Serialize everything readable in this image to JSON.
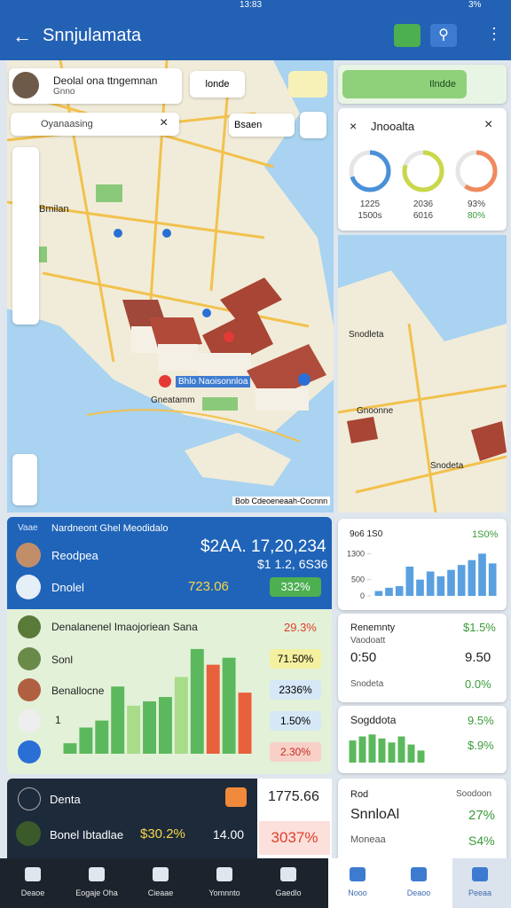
{
  "status_bar": {
    "time": "13:83",
    "battery": "3%"
  },
  "app_bar": {
    "title": "Snnjulamata"
  },
  "map": {
    "place_card": {
      "title": "Deolal ona ttngemnan",
      "subtitle": "Gnno",
      "chip": "londe"
    },
    "search": {
      "placeholder": "Oyanaasing"
    },
    "pin_chip": "Bsaen",
    "labels": [
      "Bmilan",
      "Bhlo Naoisonnloa",
      "Gneatamm"
    ],
    "attribution": "Bob Cdeoeneaah-Cocnnn"
  },
  "side_panel": {
    "search_value": "Ilndde",
    "title": "Jnooalta",
    "gauges": [
      {
        "value": 70,
        "color": "#4a90d9",
        "label": "1225",
        "sublabel": "1500s"
      },
      {
        "value": 80,
        "color": "#c8d84a",
        "label": "2036",
        "sublabel": "6016"
      },
      {
        "value": 60,
        "color": "#f08a5d",
        "label": "93%",
        "sublabel": "80%"
      }
    ]
  },
  "side_map": {
    "labels": [
      "Snodleta",
      "Gnoonne",
      "Snodeta"
    ]
  },
  "summary_card": {
    "label": "Vaae",
    "title": "Nardneont Ghel Meodidalo",
    "amount": "$2AA. 17,20,234",
    "sub_amount": "$1 1.2, 6S36",
    "rows": [
      {
        "name": "Reodpea"
      },
      {
        "name": "Dnolel",
        "value": "723.06",
        "badge": "332%"
      }
    ]
  },
  "growth_card": {
    "title": "Denalanenel Imaojoriean Sana",
    "change": "29.3%",
    "rows": [
      "Sonl",
      "Benallocne",
      "1"
    ],
    "badges": [
      "71.50%",
      "2336%",
      "1.50%",
      "2.30%"
    ],
    "chart": {
      "type": "bar",
      "values": [
        12,
        30,
        38,
        77,
        55,
        60,
        65,
        88,
        120,
        102,
        110,
        70
      ],
      "colors": [
        "#5cb85c",
        "#5cb85c",
        "#5cb85c",
        "#5cb85c",
        "#a8dc8a",
        "#5cb85c",
        "#5cb85c",
        "#a8dc8a",
        "#5cb85c",
        "#e8603c",
        "#5cb85c",
        "#e8603c"
      ],
      "ylim": [
        0,
        125
      ]
    }
  },
  "trend_card": {
    "title": "9o6 1S0",
    "change": "1S0%",
    "chart": {
      "type": "bar",
      "ylim": [
        0,
        1500
      ],
      "yticks": [
        1300,
        500,
        0
      ],
      "values": [
        150,
        250,
        300,
        900,
        500,
        750,
        600,
        800,
        950,
        1100,
        1300,
        1000
      ],
      "color": "#5aa0e0"
    }
  },
  "stats_card": {
    "rows": [
      {
        "name": "Renemnty",
        "value": "$1.5%"
      },
      {
        "name": "Vaodoatt",
        "value": ""
      },
      {
        "name": "0:50",
        "value": "9.50"
      },
      {
        "name": "Snodeta",
        "value": "0.0%"
      }
    ]
  },
  "mini_card": {
    "title": "Sogddota",
    "values_text": [
      "9.5%",
      "$.9%"
    ],
    "chart": {
      "type": "bar",
      "ylim": [
        0,
        30
      ],
      "values": [
        22,
        26,
        28,
        24,
        20,
        26,
        18,
        12
      ],
      "color": "#5cb85c"
    }
  },
  "dark_card": {
    "title": "Denta",
    "row": "Bonel Ibtadlae",
    "change": "$30.2%",
    "value": "14.00",
    "total": "1775.66",
    "total_change": "3037%"
  },
  "info_card": {
    "title": "Rod",
    "aside": "Soodoon",
    "name": "SnnloAl",
    "name_value": "27%",
    "sub": "Moneaa",
    "sub_value": "S4%"
  },
  "bottom_nav": [
    "Deaoe",
    "Eogaje Oha",
    "Cieaae",
    "Yomnnto",
    "Gaedlo",
    "Nooo",
    "Deaoo",
    "Peeaa"
  ]
}
